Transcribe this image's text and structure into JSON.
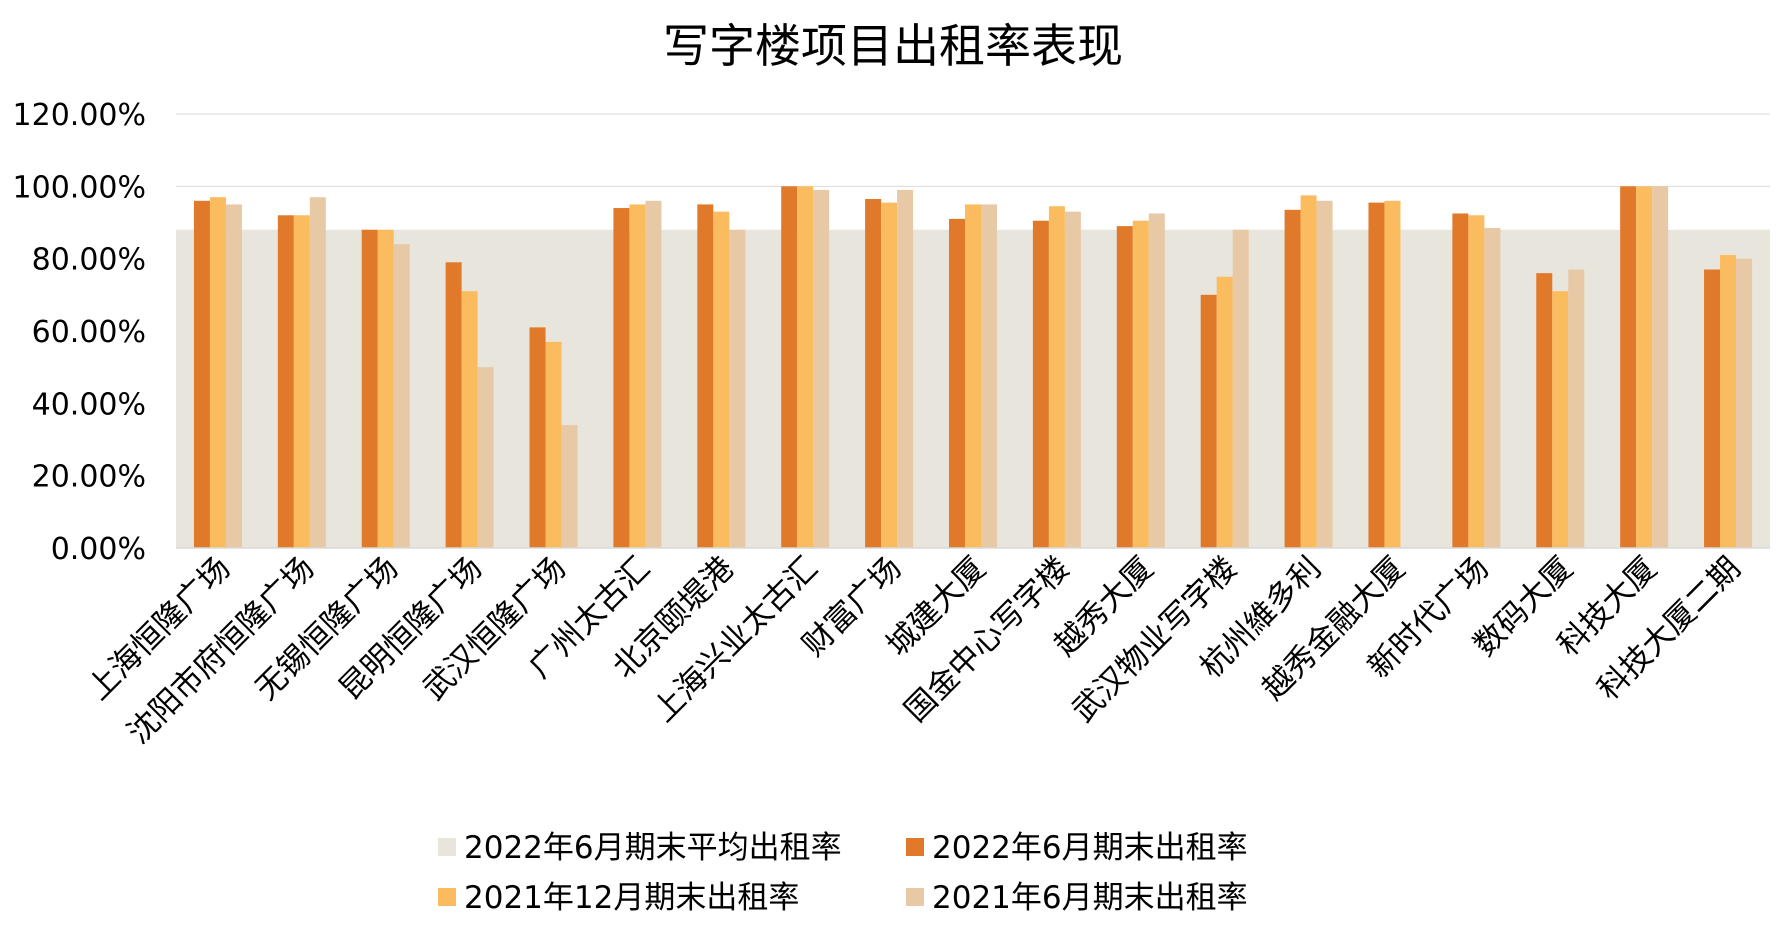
{
  "chart_data": {
    "type": "bar",
    "title": "写字楼项目出租率表现",
    "xlabel": "",
    "ylabel": "",
    "ylim": [
      0,
      1.2
    ],
    "yticks": [
      "0.00%",
      "20.00%",
      "40.00%",
      "60.00%",
      "80.00%",
      "100.00%",
      "120.00%"
    ],
    "grid": true,
    "legend_position": "bottom",
    "categories": [
      "上海恒隆广场",
      "沈阳市府恒隆广场",
      "无锡恒隆广场",
      "昆明恒隆广场",
      "武汉恒隆广场",
      "广州太古汇",
      "北京颐堤港",
      "上海兴业太古汇",
      "财富广场",
      "城建大厦",
      "国金中心写字楼",
      "越秀大厦",
      "武汉物业写字楼",
      "杭州維多利",
      "越秀金融大厦",
      "新时代广场",
      "数码大厦",
      "科技大厦",
      "科技大厦二期"
    ],
    "background_series": {
      "name": "2022年6月期末平均出租率",
      "type": "area",
      "value": 0.88,
      "color": "#e8e5dc"
    },
    "series": [
      {
        "name": "2022年6月期末出租率",
        "color": "#e07a2a",
        "values": [
          0.96,
          0.92,
          0.88,
          0.79,
          0.61,
          0.94,
          0.95,
          1.0,
          0.965,
          0.91,
          0.905,
          0.89,
          0.7,
          0.935,
          0.955,
          0.925,
          0.76,
          1.0,
          0.77
        ]
      },
      {
        "name": "2021年12月期末出租率",
        "color": "#fbbc5f",
        "values": [
          0.97,
          0.92,
          0.88,
          0.71,
          0.57,
          0.95,
          0.93,
          1.0,
          0.955,
          0.95,
          0.945,
          0.905,
          0.75,
          0.975,
          0.96,
          0.92,
          0.71,
          1.0,
          0.81
        ]
      },
      {
        "name": "2021年6月期末出租率",
        "color": "#e8c9a6",
        "values": [
          0.95,
          0.97,
          0.84,
          0.5,
          0.34,
          0.96,
          0.88,
          0.99,
          0.99,
          0.95,
          0.93,
          0.925,
          0.88,
          0.96,
          null,
          0.885,
          0.77,
          1.0,
          0.8
        ]
      }
    ]
  }
}
